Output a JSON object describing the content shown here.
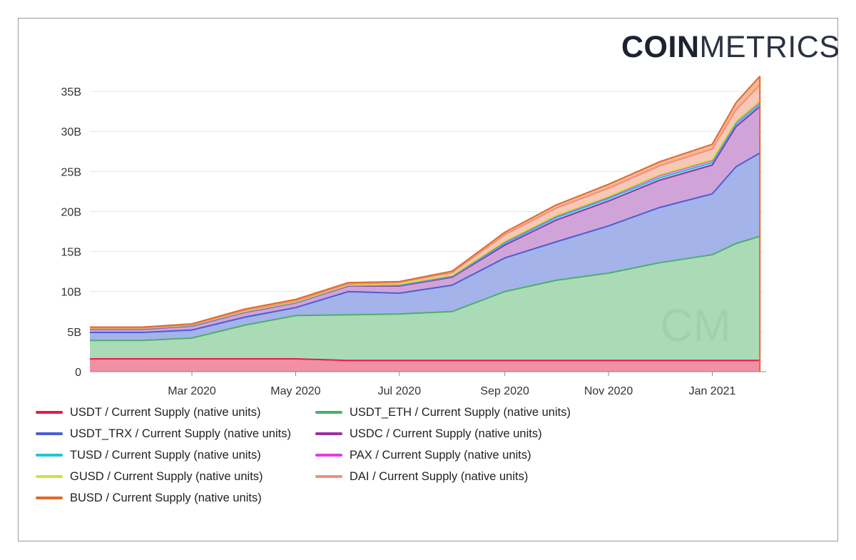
{
  "logo": {
    "bold": "COIN",
    "light": "METRICS"
  },
  "chart_data": {
    "type": "area",
    "stacked": true,
    "y_ticks": [
      "0",
      "5B",
      "10B",
      "15B",
      "20B",
      "25B",
      "30B",
      "35B"
    ],
    "ylim": [
      0,
      37500000000
    ],
    "x_ticks": [
      {
        "label": "Mar 2020",
        "x": "2020-03-01"
      },
      {
        "label": "May 2020",
        "x": "2020-05-01"
      },
      {
        "label": "Jul 2020",
        "x": "2020-07-01"
      },
      {
        "label": "Sep 2020",
        "x": "2020-09-01"
      },
      {
        "label": "Nov 2020",
        "x": "2020-11-01"
      },
      {
        "label": "Jan 2021",
        "x": "2021-01-01"
      }
    ],
    "xlim": [
      "2020-01-01",
      "2021-01-31"
    ],
    "x": [
      "2020-01-01",
      "2020-02-01",
      "2020-03-01",
      "2020-04-01",
      "2020-05-01",
      "2020-06-01",
      "2020-07-01",
      "2020-08-01",
      "2020-09-01",
      "2020-10-01",
      "2020-11-01",
      "2020-12-01",
      "2021-01-01",
      "2021-01-15",
      "2021-01-29"
    ],
    "series": [
      {
        "name": "USDT / Current Supply (native units)",
        "color": "#e8194f",
        "fill": "#f08aa0",
        "values": [
          1.6,
          1.6,
          1.6,
          1.6,
          1.6,
          1.4,
          1.4,
          1.4,
          1.4,
          1.4,
          1.4,
          1.4,
          1.4,
          1.4,
          1.4
        ]
      },
      {
        "name": "USDT_ETH / Current Supply (native units)",
        "color": "#4caf6a",
        "fill": "#a6d9b2",
        "values": [
          2.3,
          2.3,
          2.6,
          4.2,
          5.4,
          5.7,
          5.8,
          6.1,
          8.6,
          10.0,
          10.9,
          12.2,
          13.2,
          14.6,
          15.5
        ]
      },
      {
        "name": "USDT_TRX / Current Supply (native units)",
        "color": "#4a5fd0",
        "fill": "#9fafe8",
        "values": [
          1.0,
          1.0,
          1.0,
          1.0,
          1.0,
          2.9,
          2.6,
          3.3,
          4.2,
          4.8,
          5.9,
          6.9,
          7.6,
          9.6,
          10.4
        ]
      },
      {
        "name": "USDC / Current Supply (native units)",
        "color": "#9c2fa0",
        "fill": "#cf9fd7",
        "values": [
          0.4,
          0.4,
          0.5,
          0.6,
          0.6,
          0.7,
          0.9,
          1.0,
          1.6,
          2.7,
          3.1,
          3.4,
          3.6,
          5.0,
          5.8
        ]
      },
      {
        "name": "TUSD / Current Supply (native units)",
        "color": "#26c1d8",
        "fill": "#97e0ea",
        "values": [
          0.05,
          0.05,
          0.05,
          0.05,
          0.05,
          0.05,
          0.1,
          0.1,
          0.2,
          0.3,
          0.3,
          0.3,
          0.3,
          0.3,
          0.3
        ]
      },
      {
        "name": "PAX / Current Supply (native units)",
        "color": "#e23de2",
        "fill": "#f1a4f1",
        "values": [
          0.05,
          0.05,
          0.05,
          0.05,
          0.05,
          0.05,
          0.1,
          0.1,
          0.2,
          0.2,
          0.2,
          0.3,
          0.3,
          0.3,
          0.3
        ]
      },
      {
        "name": "GUSD / Current Supply (native units)",
        "color": "#c8e642",
        "fill": "#e6f4a8",
        "values": [
          0.02,
          0.02,
          0.02,
          0.02,
          0.02,
          0.02,
          0.05,
          0.05,
          0.1,
          0.1,
          0.1,
          0.1,
          0.1,
          0.1,
          0.1
        ]
      },
      {
        "name": "DAI / Current Supply (native units)",
        "color": "#f0907a",
        "fill": "#f8c4b4",
        "values": [
          0.05,
          0.05,
          0.05,
          0.1,
          0.1,
          0.1,
          0.2,
          0.3,
          0.8,
          0.9,
          1.0,
          1.1,
          1.3,
          1.4,
          2.0
        ]
      },
      {
        "name": "BUSD / Current Supply (native units)",
        "color": "#e06a2a",
        "fill": "#f2b390",
        "values": [
          0.1,
          0.1,
          0.1,
          0.2,
          0.2,
          0.2,
          0.1,
          0.2,
          0.3,
          0.4,
          0.5,
          0.5,
          0.6,
          0.9,
          1.1
        ]
      }
    ]
  }
}
